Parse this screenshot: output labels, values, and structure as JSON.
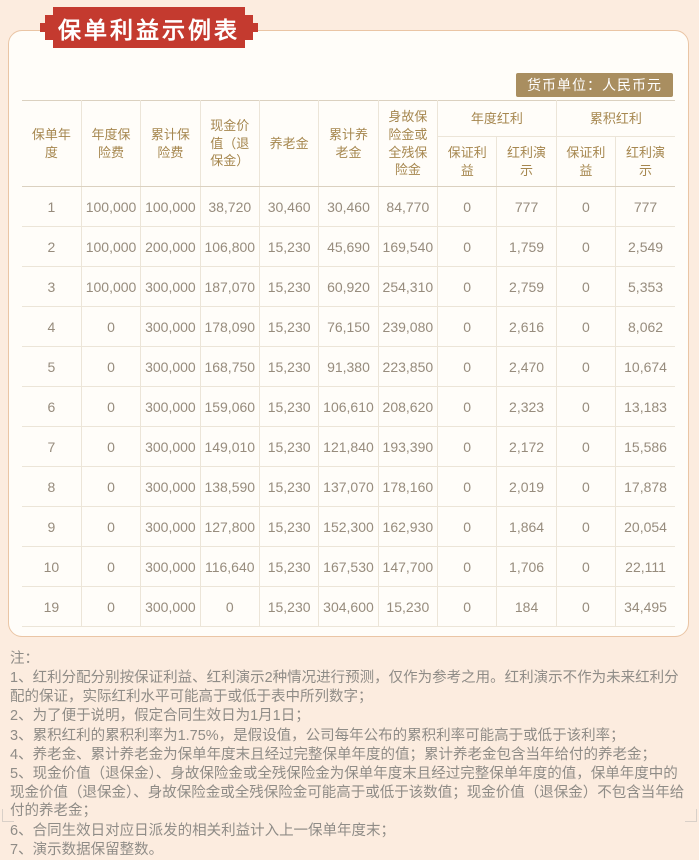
{
  "page": {
    "title_badge": "保单利益示例表",
    "currency_badge": "货币单位：人民币元"
  },
  "colors": {
    "accent_red": "#c43a2f",
    "badge_tan": "#a98e60",
    "header_text": "#a6874f",
    "cell_text": "#978c7d",
    "page_background": "#fcecdf",
    "panel_background": "#fffdf9"
  },
  "table": {
    "columns": [
      "保单年度",
      "年度保险费",
      "累计保险费",
      "现金价值（退保金）",
      "养老金",
      "累计养老金",
      "身故保险金或全残保险金"
    ],
    "groups": [
      {
        "label": "年度红利",
        "sub": [
          "保证利益",
          "红利演示"
        ]
      },
      {
        "label": "累积红利",
        "sub": [
          "保证利益",
          "红利演示"
        ]
      }
    ],
    "rows": [
      [
        "1",
        "100,000",
        "100,000",
        "38,720",
        "30,460",
        "30,460",
        "84,770",
        "0",
        "777",
        "0",
        "777"
      ],
      [
        "2",
        "100,000",
        "200,000",
        "106,800",
        "15,230",
        "45,690",
        "169,540",
        "0",
        "1,759",
        "0",
        "2,549"
      ],
      [
        "3",
        "100,000",
        "300,000",
        "187,070",
        "15,230",
        "60,920",
        "254,310",
        "0",
        "2,759",
        "0",
        "5,353"
      ],
      [
        "4",
        "0",
        "300,000",
        "178,090",
        "15,230",
        "76,150",
        "239,080",
        "0",
        "2,616",
        "0",
        "8,062"
      ],
      [
        "5",
        "0",
        "300,000",
        "168,750",
        "15,230",
        "91,380",
        "223,850",
        "0",
        "2,470",
        "0",
        "10,674"
      ],
      [
        "6",
        "0",
        "300,000",
        "159,060",
        "15,230",
        "106,610",
        "208,620",
        "0",
        "2,323",
        "0",
        "13,183"
      ],
      [
        "7",
        "0",
        "300,000",
        "149,010",
        "15,230",
        "121,840",
        "193,390",
        "0",
        "2,172",
        "0",
        "15,586"
      ],
      [
        "8",
        "0",
        "300,000",
        "138,590",
        "15,230",
        "137,070",
        "178,160",
        "0",
        "2,019",
        "0",
        "17,878"
      ],
      [
        "9",
        "0",
        "300,000",
        "127,800",
        "15,230",
        "152,300",
        "162,930",
        "0",
        "1,864",
        "0",
        "20,054"
      ],
      [
        "10",
        "0",
        "300,000",
        "116,640",
        "15,230",
        "167,530",
        "147,700",
        "0",
        "1,706",
        "0",
        "22,111"
      ],
      [
        "19",
        "0",
        "300,000",
        "0",
        "15,230",
        "304,600",
        "15,230",
        "0",
        "184",
        "0",
        "34,495"
      ]
    ]
  },
  "notes": {
    "label": "注：",
    "items": [
      "1、红利分配分别按保证利益、红利演示2种情况进行预测，仅作为参考之用。红利演示不作为未来红利分配的保证，实际红利水平可能高于或低于表中所列数字；",
      "2、为了便于说明，假定合同生效日为1月1日；",
      "3、累积红利的累积利率为1.75%，是假设值，公司每年公布的累积利率可能高于或低于该利率；",
      "4、养老金、累计养老金为保单年度末且经过完整保单年度的值；累计养老金包含当年给付的养老金；",
      "5、现金价值（退保金）、身故保险金或全残保险金为保单年度末且经过完整保单年度的值，保单年度中的现金价值（退保金）、身故保险金或全残保险金可能高于或低于该数值；现金价值（退保金）不包含当年给付的养老金；",
      "6、合同生效日对应日派发的相关利益计入上一保单年度末；",
      "7、演示数据保留整数。"
    ]
  }
}
